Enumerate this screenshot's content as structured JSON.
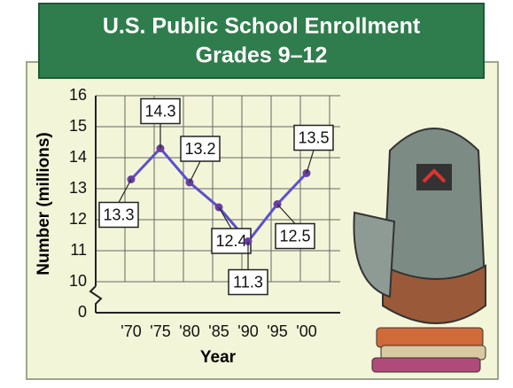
{
  "chart_data": {
    "type": "line",
    "title": "U.S. Public School Enrollment",
    "subtitle": "Grades 9–12",
    "x_label": "Year",
    "y_label": "Number (millions)",
    "categories": [
      "'70",
      "'75",
      "'80",
      "'85",
      "'90",
      "'95",
      "'00"
    ],
    "values": [
      13.3,
      14.3,
      13.2,
      12.4,
      11.3,
      12.5,
      13.5
    ],
    "color": "#5b4fd0",
    "ylim": [
      0,
      16
    ],
    "y_break": [
      0,
      10
    ],
    "yticks": [
      0,
      10,
      11,
      12,
      13,
      14,
      15,
      16
    ],
    "grid": true
  }
}
